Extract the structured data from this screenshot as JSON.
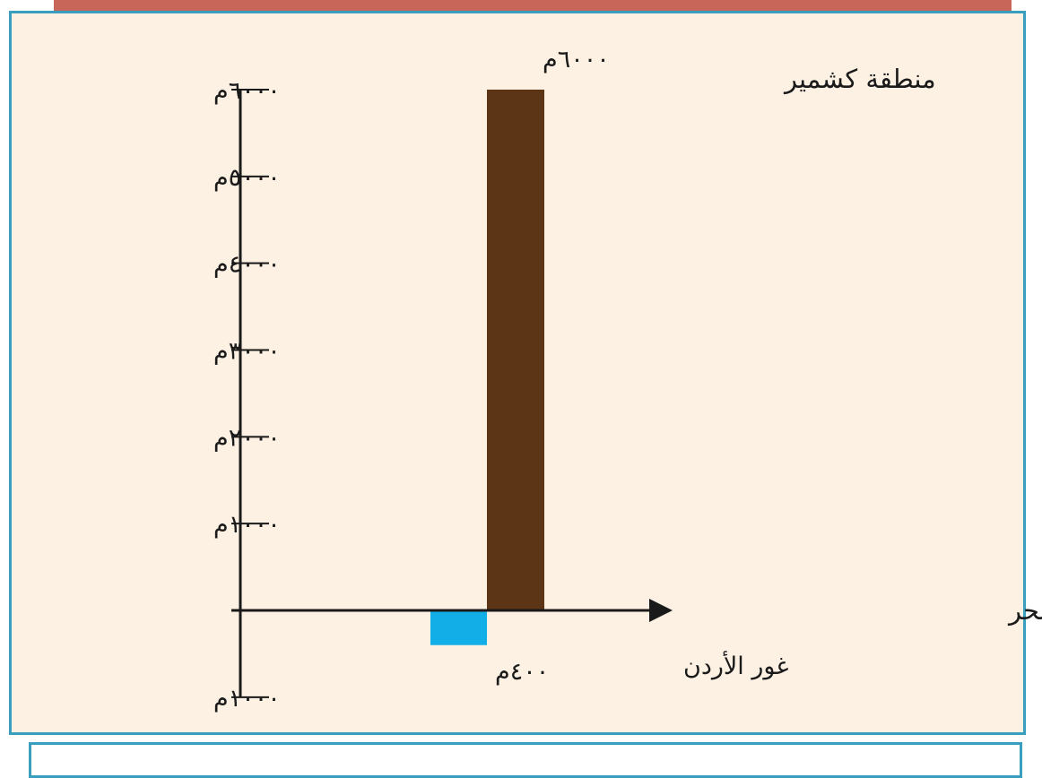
{
  "chart_data": {
    "type": "bar",
    "categories": [
      "غور الأردن",
      "منطقة كشمير"
    ],
    "values": [
      -400,
      6000
    ],
    "colors": [
      "#12aee8",
      "#5c3516"
    ],
    "data_labels": [
      "٤٠٠م",
      "٦٠٠٠م"
    ],
    "xlabel": "مستوى سطح البحر",
    "ylim": [
      -1000,
      6000
    ],
    "ticks": [
      {
        "value": 6000,
        "label": "٦٠٠٠م"
      },
      {
        "value": 5000,
        "label": "٥٠٠٠م"
      },
      {
        "value": 4000,
        "label": "٤٠٠٠م"
      },
      {
        "value": 3000,
        "label": "٣٠٠٠م"
      },
      {
        "value": 2000,
        "label": "٢٠٠٠م"
      },
      {
        "value": 1000,
        "label": "١٠٠٠م"
      },
      {
        "value": -1000,
        "label": "١٠٠٠م"
      }
    ],
    "grid": false,
    "legend": "none"
  },
  "colors": {
    "panel_background": "#fdf1e3",
    "panel_border": "#3a9fbf",
    "top_band": "#c9665a",
    "axis": "#1a1a1a"
  }
}
